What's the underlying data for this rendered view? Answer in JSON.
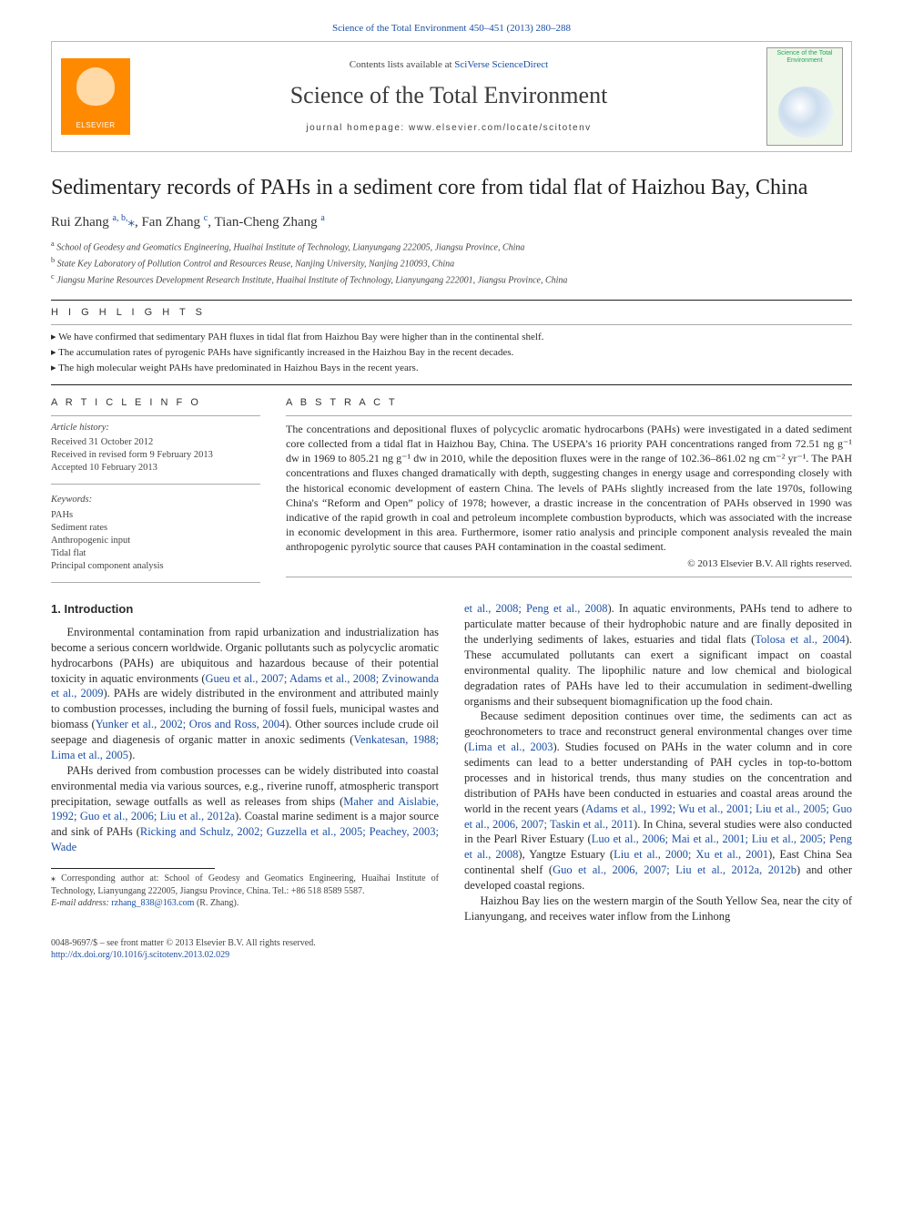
{
  "top_citation": "Science of the Total Environment 450–451 (2013) 280–288",
  "header": {
    "contents_prefix": "Contents lists available at ",
    "contents_link": "SciVerse ScienceDirect",
    "journal_name": "Science of the Total Environment",
    "homepage_prefix": "journal homepage: ",
    "homepage_url": "www.elsevier.com/locate/scitotenv",
    "publisher_logo_text": "ELSEVIER",
    "cover_title": "Science of the Total Environment"
  },
  "article": {
    "title": "Sedimentary records of PAHs in a sediment core from tidal flat of Haizhou Bay, China",
    "authors_html": "Rui Zhang <sup>a, b,</sup><span class='star'>⁎</span>, Fan Zhang <sup>c</sup>, Tian-Cheng Zhang <sup>a</sup>",
    "affiliations": [
      {
        "sup": "a",
        "text": "School of Geodesy and Geomatics Engineering, Huaihai Institute of Technology, Lianyungang 222005, Jiangsu Province, China"
      },
      {
        "sup": "b",
        "text": "State Key Laboratory of Pollution Control and Resources Reuse, Nanjing University, Nanjing 210093, China"
      },
      {
        "sup": "c",
        "text": "Jiangsu Marine Resources Development Research Institute, Huaihai Institute of Technology, Lianyungang 222001, Jiangsu Province, China"
      }
    ]
  },
  "highlights": {
    "label": "H I G H L I G H T S",
    "items": [
      "We have confirmed that sedimentary PAH fluxes in tidal flat from Haizhou Bay were higher than in the continental shelf.",
      "The accumulation rates of pyrogenic PAHs have significantly increased in the Haizhou Bay in the recent decades.",
      "The high molecular weight PAHs have predominated in Haizhou Bays in the recent years."
    ]
  },
  "article_info": {
    "label": "A R T I C L E    I N F O",
    "history_head": "Article history:",
    "history": [
      "Received 31 October 2012",
      "Received in revised form 9 February 2013",
      "Accepted 10 February 2013"
    ],
    "keywords_head": "Keywords:",
    "keywords": [
      "PAHs",
      "Sediment rates",
      "Anthropogenic input",
      "Tidal flat",
      "Principal component analysis"
    ]
  },
  "abstract": {
    "label": "A B S T R A C T",
    "text": "The concentrations and depositional fluxes of polycyclic aromatic hydrocarbons (PAHs) were investigated in a dated sediment core collected from a tidal flat in Haizhou Bay, China. The USEPA's 16 priority PAH concentrations ranged from 72.51 ng g⁻¹ dw in 1969 to 805.21 ng g⁻¹ dw in 2010, while the deposition fluxes were in the range of 102.36–861.02 ng cm⁻² yr⁻¹. The PAH concentrations and fluxes changed dramatically with depth, suggesting changes in energy usage and corresponding closely with the historical economic development of eastern China. The levels of PAHs slightly increased from the late 1970s, following China's “Reform and Open” policy of 1978; however, a drastic increase in the concentration of PAHs observed in 1990 was indicative of the rapid growth in coal and petroleum incomplete combustion byproducts, which was associated with the increase in economic development in this area. Furthermore, isomer ratio analysis and principle component analysis revealed the main anthropogenic pyrolytic source that causes PAH contamination in the coastal sediment.",
    "copyright": "© 2013 Elsevier B.V. All rights reserved."
  },
  "body": {
    "section_heading": "1. Introduction",
    "p1a": "Environmental contamination from rapid urbanization and industrialization has become a serious concern worldwide. Organic pollutants such as polycyclic aromatic hydrocarbons (PAHs) are ubiquitous and hazardous because of their potential toxicity in aquatic environments (",
    "c1": "Gueu et al., 2007; Adams et al., 2008; Zvinowanda et al., 2009",
    "p1b": "). PAHs are widely distributed in the environment and attributed mainly to combustion processes, including the burning of fossil fuels, municipal wastes and biomass (",
    "c2": "Yunker et al., 2002; Oros and Ross, 2004",
    "p1c": "). Other sources include crude oil seepage and diagenesis of organic matter in anoxic sediments (",
    "c3": "Venkatesan, 1988; Lima et al., 2005",
    "p1d": ").",
    "p2a": "PAHs derived from combustion processes can be widely distributed into coastal environmental media via various sources, e.g., riverine runoff, atmospheric transport precipitation, sewage outfalls as well as releases from ships (",
    "c4": "Maher and Aislabie, 1992; Guo et al., 2006; Liu et al., 2012a",
    "p2b": "). Coastal marine sediment is a major source and sink of PAHs (",
    "c5": "Ricking and Schulz, 2002; Guzzella et al., 2005; Peachey, 2003; Wade ",
    "c5b": "et al., 2008; Peng et al., 2008",
    "p3a": "). In aquatic environments, PAHs tend to adhere to particulate matter because of their hydrophobic nature and are finally deposited in the underlying sediments of lakes, estuaries and tidal flats (",
    "c6": "Tolosa et al., 2004",
    "p3b": "). These accumulated pollutants can exert a significant impact on coastal environmental quality. The lipophilic nature and low chemical and biological degradation rates of PAHs have led to their accumulation in sediment-dwelling organisms and their subsequent biomagnification up the food chain.",
    "p4a": "Because sediment deposition continues over time, the sediments can act as geochronometers to trace and reconstruct general environmental changes over time (",
    "c7": "Lima et al., 2003",
    "p4b": "). Studies focused on PAHs in the water column and in core sediments can lead to a better understanding of PAH cycles in top-to-bottom processes and in historical trends, thus many studies on the concentration and distribution of PAHs have been conducted in estuaries and coastal areas around the world in the recent years (",
    "c8": "Adams et al., 1992; Wu et al., 2001; Liu et al., 2005; Guo et al., 2006, 2007; Taskin et al., 2011",
    "p4c": "). In China, several studies were also conducted in the Pearl River Estuary (",
    "c9": "Luo et al., 2006; Mai et al., 2001; Liu et al., 2005; Peng et al., 2008",
    "p4d": "), Yangtze Estuary (",
    "c10": "Liu et al., 2000; Xu et al., 2001",
    "p4e": "), East China Sea continental shelf (",
    "c11": "Guo et al., 2006, 2007; Liu et al., 2012a, 2012b",
    "p4f": ") and other developed coastal regions.",
    "p5": "Haizhou Bay lies on the western margin of the South Yellow Sea, near the city of Lianyungang, and receives water inflow from the Linhong"
  },
  "footnotes": {
    "corr": "Corresponding author at: School of Geodesy and Geomatics Engineering, Huaihai Institute of Technology, Lianyungang 222005, Jiangsu Province, China. Tel.: +86 518 8589 5587.",
    "email_label": "E-mail address: ",
    "email": "rzhang_838@163.com",
    "email_suffix": " (R. Zhang)."
  },
  "bottom": {
    "left1": "0048-9697/$ – see front matter © 2013 Elsevier B.V. All rights reserved.",
    "doi": "http://dx.doi.org/10.1016/j.scitotenv.2013.02.029"
  },
  "colors": {
    "link": "#1a4fa3",
    "elsevier_bg": "#ff8a00",
    "text": "#2b2b2b",
    "rule": "#222222"
  }
}
